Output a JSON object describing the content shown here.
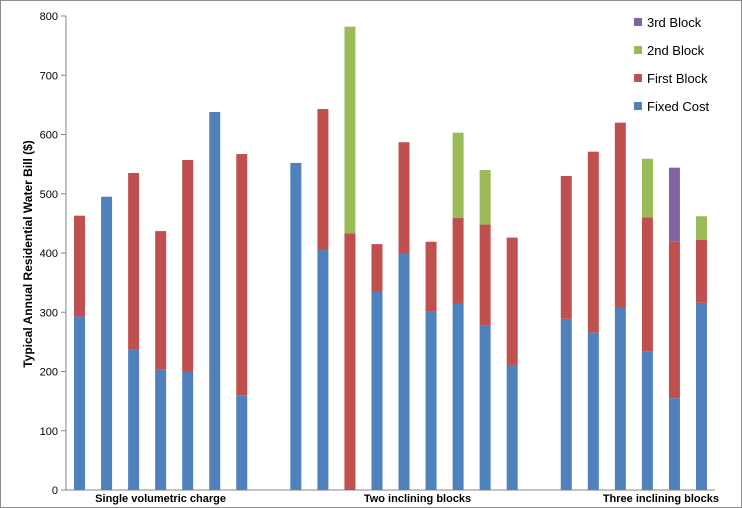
{
  "chart_data": {
    "type": "bar",
    "stacked": true,
    "ylabel": "Typical Annual Residential Water Bill ($)",
    "xlabel": "",
    "ylim": [
      0,
      800
    ],
    "yticks": [
      "0",
      "100",
      "200",
      "300",
      "400",
      "500",
      "600",
      "700",
      "800"
    ],
    "grid": false,
    "legend_position": "top-right",
    "legend": [
      "3rd Block",
      "2nd Block",
      "First Block",
      "Fixed Cost"
    ],
    "colors": {
      "Fixed Cost": "#4f81bd",
      "First Block": "#c0504d",
      "2nd Block": "#9bbb59",
      "3rd Block": "#8064a2"
    },
    "groups": [
      {
        "label": "Single volumetric charge",
        "start": 0,
        "end": 6
      },
      {
        "label": "Two inclining blocks",
        "start": 8,
        "end": 17
      },
      {
        "label": "Three inclining blocks",
        "start": 19,
        "end": 24
      }
    ],
    "bars": [
      {
        "Fixed Cost": 293,
        "First Block": 170,
        "2nd Block": 0,
        "3rd Block": 0
      },
      {
        "Fixed Cost": 495,
        "First Block": 0,
        "2nd Block": 0,
        "3rd Block": 0
      },
      {
        "Fixed Cost": 237,
        "First Block": 298,
        "2nd Block": 0,
        "3rd Block": 0
      },
      {
        "Fixed Cost": 203,
        "First Block": 234,
        "2nd Block": 0,
        "3rd Block": 0
      },
      {
        "Fixed Cost": 200,
        "First Block": 357,
        "2nd Block": 0,
        "3rd Block": 0
      },
      {
        "Fixed Cost": 638,
        "First Block": 0,
        "2nd Block": 0,
        "3rd Block": 0
      },
      {
        "Fixed Cost": 160,
        "First Block": 407,
        "2nd Block": 0,
        "3rd Block": 0
      },
      null,
      {
        "Fixed Cost": 552,
        "First Block": 0,
        "2nd Block": 0,
        "3rd Block": 0
      },
      {
        "Fixed Cost": 405,
        "First Block": 238,
        "2nd Block": 0,
        "3rd Block": 0
      },
      {
        "Fixed Cost": 0,
        "First Block": 433,
        "2nd Block": 349,
        "3rd Block": 0
      },
      {
        "Fixed Cost": 335,
        "First Block": 80,
        "2nd Block": 0,
        "3rd Block": 0
      },
      {
        "Fixed Cost": 400,
        "First Block": 187,
        "2nd Block": 0,
        "3rd Block": 0
      },
      {
        "Fixed Cost": 302,
        "First Block": 117,
        "2nd Block": 0,
        "3rd Block": 0
      },
      {
        "Fixed Cost": 314,
        "First Block": 145,
        "2nd Block": 144,
        "3rd Block": 0
      },
      {
        "Fixed Cost": 277,
        "First Block": 171,
        "2nd Block": 92,
        "3rd Block": 0
      },
      {
        "Fixed Cost": 211,
        "First Block": 215,
        "2nd Block": 0,
        "3rd Block": 0
      },
      null,
      {
        "Fixed Cost": 289,
        "First Block": 241,
        "2nd Block": 0,
        "3rd Block": 0
      },
      {
        "Fixed Cost": 266,
        "First Block": 305,
        "2nd Block": 0,
        "3rd Block": 0
      },
      {
        "Fixed Cost": 308,
        "First Block": 312,
        "2nd Block": 0,
        "3rd Block": 0
      },
      {
        "Fixed Cost": 234,
        "First Block": 226,
        "2nd Block": 99,
        "3rd Block": 0
      },
      {
        "Fixed Cost": 155,
        "First Block": 265,
        "2nd Block": 0,
        "3rd Block": 124
      },
      {
        "Fixed Cost": 316,
        "First Block": 106,
        "2nd Block": 40,
        "3rd Block": 0
      }
    ]
  }
}
